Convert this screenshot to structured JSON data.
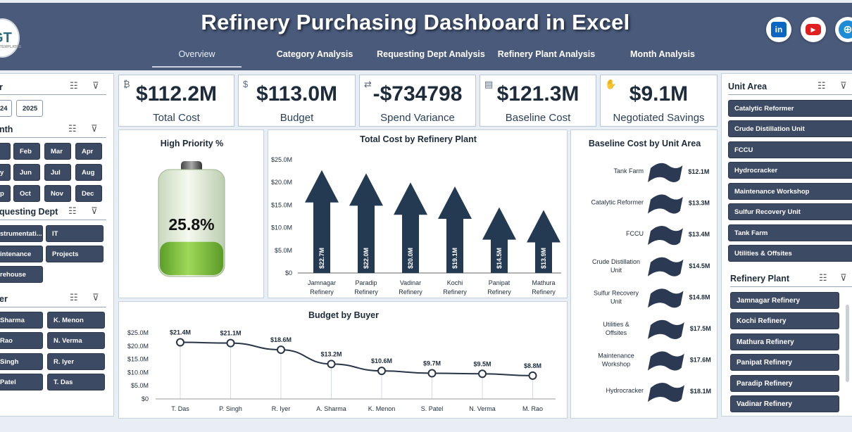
{
  "header": {
    "title": "Refinery Purchasing Dashboard in Excel",
    "logo_text": "GT",
    "logo_sub": "TEMPLATES",
    "tabs": [
      "Overview",
      "Category Analysis",
      "Requesting Dept Analysis",
      "Refinery Plant Analysis",
      "Month Analysis"
    ],
    "social": [
      {
        "name": "linkedin",
        "label": "in",
        "color": "#0a66c2"
      },
      {
        "name": "youtube",
        "label": "▶",
        "color": "#e02020"
      },
      {
        "name": "website",
        "label": "⊕",
        "color": "#1e8bd6"
      }
    ]
  },
  "slicers": {
    "year": {
      "title": "r",
      "items": [
        "24",
        "2025"
      ]
    },
    "month": {
      "title": "nth",
      "items": [
        "",
        "Feb",
        "Mar",
        "Apr",
        "y",
        "Jun",
        "Jul",
        "Aug",
        "p",
        "Oct",
        "Nov",
        "Dec"
      ]
    },
    "dept": {
      "title": "questing Dept",
      "items": [
        "strumentati...",
        "IT",
        "intenance",
        "Projects",
        "rehouse"
      ]
    },
    "buyer": {
      "title": "er",
      "items": [
        "Sharma",
        "K. Menon",
        "Rao",
        "N. Verma",
        "Singh",
        "R. Iyer",
        "Patel",
        "T. Das"
      ]
    },
    "unit_area": {
      "title": "Unit Area",
      "items": [
        "Catalytic Reformer",
        "Crude Distillation Unit",
        "FCCU",
        "Hydrocracker",
        "Maintenance Workshop",
        "Sulfur Recovery Unit",
        "Tank Farm",
        "Utilities & Offsites"
      ]
    },
    "plant": {
      "title": "Refinery Plant",
      "items": [
        "Jamnagar Refinery",
        "Kochi Refinery",
        "Mathura Refinery",
        "Panipat Refinery",
        "Paradip Refinery",
        "Vadinar Refinery"
      ]
    }
  },
  "kpis": [
    {
      "value": "$112.2M",
      "label": "Total Cost"
    },
    {
      "value": "$113.0M",
      "label": "Budget"
    },
    {
      "value": "-$734798",
      "label": "Spend Variance"
    },
    {
      "value": "$121.3M",
      "label": "Baseline Cost"
    },
    {
      "value": "$9.1M",
      "label": "Negotiated Savings"
    }
  ],
  "high_priority": {
    "title": "High Priority %",
    "value": "25.8%",
    "fraction": 0.258
  },
  "chart_data": [
    {
      "type": "bar",
      "title": "Total Cost by Refinery Plant",
      "categories": [
        "Jamnagar Refinery",
        "Paradip Refinery",
        "Vadinar Refinery",
        "Kochi Refinery",
        "Panipat Refinery",
        "Mathura Refinery"
      ],
      "values": [
        22.7,
        22.0,
        20.0,
        19.1,
        14.5,
        13.9
      ],
      "data_labels": [
        "$22.7M",
        "$22.0M",
        "$20.0M",
        "$19.1M",
        "$14.5M",
        "$13.9M"
      ],
      "yticks": [
        "$0",
        "$5.0M",
        "$10.0M",
        "$15.0M",
        "$20.0M",
        "$25.0M"
      ],
      "ylim": [
        0,
        25
      ]
    },
    {
      "type": "line",
      "title": "Budget by Buyer",
      "categories": [
        "T. Das",
        "P. Singh",
        "R. Iyer",
        "A. Sharma",
        "K. Menon",
        "S. Patel",
        "N. Verma",
        "M. Rao"
      ],
      "values": [
        21.4,
        21.1,
        18.6,
        13.2,
        10.6,
        9.7,
        9.5,
        8.8
      ],
      "data_labels": [
        "$21.4M",
        "$21.1M",
        "$18.6M",
        "$13.2M",
        "$10.6M",
        "$9.7M",
        "$9.5M",
        "$8.8M"
      ],
      "yticks": [
        "$0",
        "$5.0M",
        "$10.0M",
        "$15.0M",
        "$20.0M",
        "$25.0M"
      ],
      "ylim": [
        0,
        25
      ]
    },
    {
      "type": "bar",
      "title": "Baseline Cost by Unit Area",
      "categories": [
        "Tank Farm",
        "Catalytic Reformer",
        "FCCU",
        "Crude Distillation Unit",
        "Sulfur Recovery Unit",
        "Utilities & Offsites",
        "Maintenance Workshop",
        "Hydrocracker"
      ],
      "values": [
        12.1,
        13.3,
        13.4,
        14.5,
        14.8,
        17.5,
        17.6,
        18.1
      ],
      "data_labels": [
        "$12.1M",
        "$13.3M",
        "$13.4M",
        "$14.5M",
        "$14.8M",
        "$17.5M",
        "$17.6M",
        "$18.1M"
      ]
    }
  ]
}
